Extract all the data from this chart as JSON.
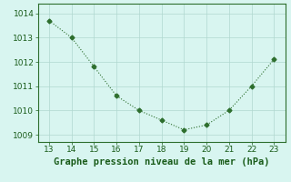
{
  "x": [
    13,
    14,
    15,
    16,
    17,
    18,
    19,
    20,
    21,
    22,
    23
  ],
  "y": [
    1013.7,
    1013.0,
    1011.8,
    1010.6,
    1010.0,
    1009.6,
    1009.2,
    1009.4,
    1010.0,
    1011.0,
    1012.1
  ],
  "line_color": "#2d6e2d",
  "marker": "D",
  "marker_size": 2.5,
  "background_color": "#d8f5f0",
  "grid_color": "#b0d8d0",
  "xlabel": "Graphe pression niveau de la mer (hPa)",
  "xlabel_color": "#1a5c1a",
  "tick_color": "#1a5c1a",
  "spine_color": "#2d6e2d",
  "xlim": [
    12.5,
    23.5
  ],
  "ylim": [
    1008.7,
    1014.4
  ],
  "xticks": [
    13,
    14,
    15,
    16,
    17,
    18,
    19,
    20,
    21,
    22,
    23
  ],
  "yticks": [
    1009,
    1010,
    1011,
    1012,
    1013,
    1014
  ],
  "tick_fontsize": 6.5,
  "xlabel_fontsize": 7.5
}
